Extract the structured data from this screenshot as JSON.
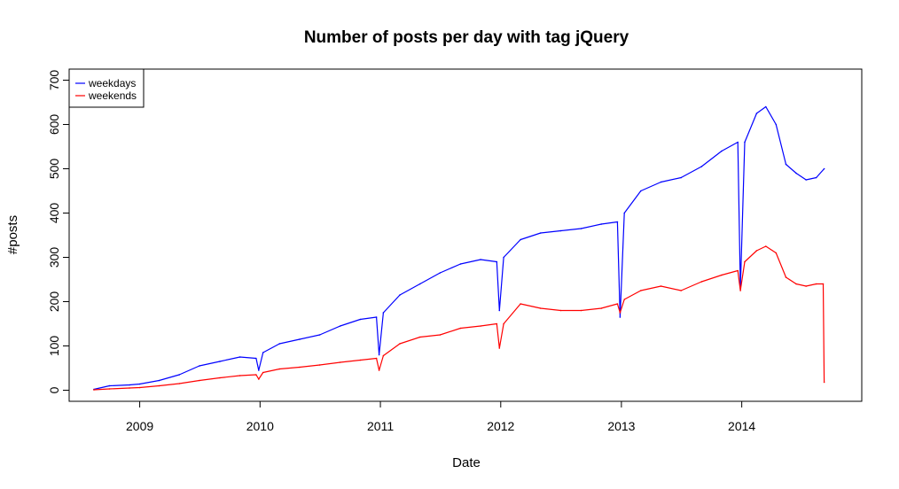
{
  "chart_data": {
    "type": "line",
    "title": "Number of posts per day with tag jQuery",
    "xlabel": "Date",
    "ylabel": "#posts",
    "xlim": [
      "2008-06-01",
      "2014-12-31"
    ],
    "ylim": [
      -25,
      725
    ],
    "x_ticks": [
      {
        "label": "2009",
        "date": "2009-01-01"
      },
      {
        "label": "2010",
        "date": "2010-01-01"
      },
      {
        "label": "2011",
        "date": "2011-01-01"
      },
      {
        "label": "2012",
        "date": "2012-01-01"
      },
      {
        "label": "2013",
        "date": "2013-01-01"
      },
      {
        "label": "2014",
        "date": "2014-01-01"
      }
    ],
    "y_ticks": [
      0,
      100,
      200,
      300,
      400,
      500,
      600,
      700
    ],
    "grid": false,
    "legend": {
      "position": "top-left",
      "entries": [
        {
          "label": "weekdays",
          "color": "#0000ff"
        },
        {
          "label": "weekends",
          "color": "#ff0000"
        }
      ]
    },
    "series": [
      {
        "name": "weekdays",
        "color": "#0000ff",
        "points": [
          [
            "2008-08-15",
            2
          ],
          [
            "2008-10-01",
            10
          ],
          [
            "2008-12-01",
            12
          ],
          [
            "2009-01-01",
            14
          ],
          [
            "2009-03-01",
            22
          ],
          [
            "2009-05-01",
            35
          ],
          [
            "2009-07-01",
            55
          ],
          [
            "2009-09-01",
            65
          ],
          [
            "2009-11-01",
            75
          ],
          [
            "2009-12-20",
            72
          ],
          [
            "2009-12-28",
            45
          ],
          [
            "2010-01-10",
            85
          ],
          [
            "2010-03-01",
            105
          ],
          [
            "2010-05-01",
            115
          ],
          [
            "2010-07-01",
            125
          ],
          [
            "2010-09-01",
            145
          ],
          [
            "2010-11-01",
            160
          ],
          [
            "2010-12-20",
            165
          ],
          [
            "2010-12-28",
            80
          ],
          [
            "2011-01-10",
            175
          ],
          [
            "2011-03-01",
            215
          ],
          [
            "2011-05-01",
            240
          ],
          [
            "2011-07-01",
            265
          ],
          [
            "2011-09-01",
            285
          ],
          [
            "2011-11-01",
            295
          ],
          [
            "2011-12-20",
            290
          ],
          [
            "2011-12-28",
            180
          ],
          [
            "2012-01-10",
            300
          ],
          [
            "2012-03-01",
            340
          ],
          [
            "2012-05-01",
            355
          ],
          [
            "2012-07-01",
            360
          ],
          [
            "2012-09-01",
            365
          ],
          [
            "2012-11-01",
            375
          ],
          [
            "2012-12-20",
            380
          ],
          [
            "2012-12-28",
            165
          ],
          [
            "2013-01-10",
            400
          ],
          [
            "2013-03-01",
            450
          ],
          [
            "2013-05-01",
            470
          ],
          [
            "2013-07-01",
            480
          ],
          [
            "2013-09-01",
            505
          ],
          [
            "2013-11-01",
            540
          ],
          [
            "2013-12-20",
            560
          ],
          [
            "2013-12-28",
            230
          ],
          [
            "2014-01-10",
            560
          ],
          [
            "2014-02-15",
            625
          ],
          [
            "2014-03-15",
            640
          ],
          [
            "2014-04-15",
            600
          ],
          [
            "2014-05-15",
            510
          ],
          [
            "2014-06-15",
            490
          ],
          [
            "2014-07-15",
            475
          ],
          [
            "2014-08-15",
            480
          ],
          [
            "2014-09-08",
            500
          ]
        ]
      },
      {
        "name": "weekends",
        "color": "#ff0000",
        "points": [
          [
            "2008-08-15",
            1
          ],
          [
            "2008-10-01",
            3
          ],
          [
            "2008-12-01",
            5
          ],
          [
            "2009-01-01",
            6
          ],
          [
            "2009-03-01",
            10
          ],
          [
            "2009-05-01",
            15
          ],
          [
            "2009-07-01",
            22
          ],
          [
            "2009-09-01",
            28
          ],
          [
            "2009-11-01",
            33
          ],
          [
            "2009-12-20",
            35
          ],
          [
            "2009-12-28",
            25
          ],
          [
            "2010-01-10",
            40
          ],
          [
            "2010-03-01",
            48
          ],
          [
            "2010-05-01",
            52
          ],
          [
            "2010-07-01",
            57
          ],
          [
            "2010-09-01",
            63
          ],
          [
            "2010-11-01",
            68
          ],
          [
            "2010-12-20",
            72
          ],
          [
            "2010-12-28",
            45
          ],
          [
            "2011-01-10",
            78
          ],
          [
            "2011-03-01",
            105
          ],
          [
            "2011-05-01",
            120
          ],
          [
            "2011-07-01",
            125
          ],
          [
            "2011-09-01",
            140
          ],
          [
            "2011-11-01",
            145
          ],
          [
            "2011-12-20",
            150
          ],
          [
            "2011-12-28",
            95
          ],
          [
            "2012-01-10",
            150
          ],
          [
            "2012-03-01",
            195
          ],
          [
            "2012-05-01",
            185
          ],
          [
            "2012-07-01",
            180
          ],
          [
            "2012-09-01",
            180
          ],
          [
            "2012-11-01",
            185
          ],
          [
            "2012-12-20",
            195
          ],
          [
            "2012-12-28",
            175
          ],
          [
            "2013-01-10",
            205
          ],
          [
            "2013-03-01",
            225
          ],
          [
            "2013-05-01",
            235
          ],
          [
            "2013-07-01",
            225
          ],
          [
            "2013-09-01",
            245
          ],
          [
            "2013-11-01",
            260
          ],
          [
            "2013-12-20",
            270
          ],
          [
            "2013-12-28",
            225
          ],
          [
            "2014-01-10",
            290
          ],
          [
            "2014-02-15",
            315
          ],
          [
            "2014-03-15",
            325
          ],
          [
            "2014-04-15",
            310
          ],
          [
            "2014-05-15",
            255
          ],
          [
            "2014-06-15",
            240
          ],
          [
            "2014-07-15",
            235
          ],
          [
            "2014-08-15",
            240
          ],
          [
            "2014-09-05",
            240
          ],
          [
            "2014-09-08",
            18
          ]
        ]
      }
    ]
  }
}
